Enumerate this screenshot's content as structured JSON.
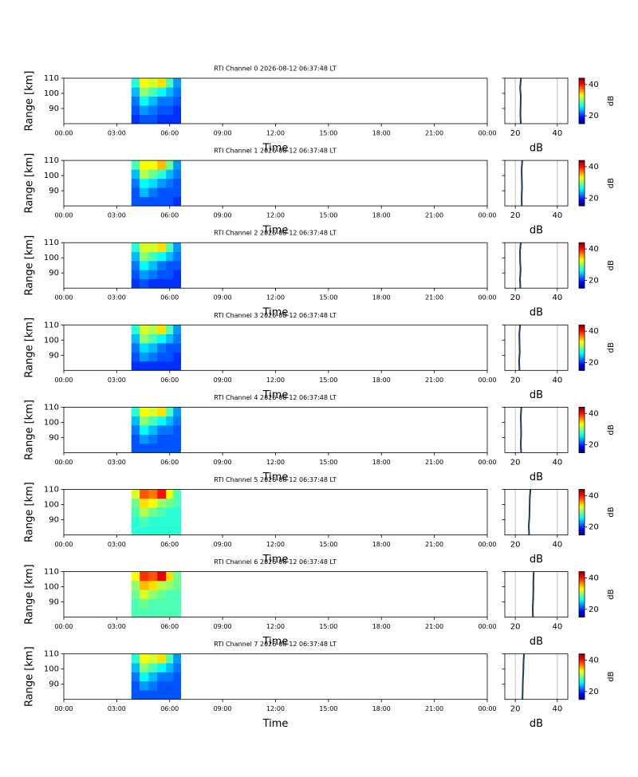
{
  "chart_data": {
    "type": "rti",
    "xlabel": "Time",
    "ylabel": "Range [km]",
    "profile_xlabel": "dB",
    "colorbar_label": "dB",
    "xlim": [
      0,
      24
    ],
    "xticks": [
      {
        "value": 0,
        "label": "00:00"
      },
      {
        "value": 3,
        "label": "03:00"
      },
      {
        "value": 6,
        "label": "06:00"
      },
      {
        "value": 9,
        "label": "09:00"
      },
      {
        "value": 12,
        "label": "12:00"
      },
      {
        "value": 15,
        "label": "15:00"
      },
      {
        "value": 18,
        "label": "18:00"
      },
      {
        "value": 21,
        "label": "21:00"
      },
      {
        "value": 24,
        "label": "00:00"
      }
    ],
    "ylim": [
      80,
      110
    ],
    "yticks": [
      90,
      100,
      110
    ],
    "profile_xlim": [
      15,
      45
    ],
    "profile_xticks": [
      20,
      40
    ],
    "profile_grid": true,
    "profile_color": "#1f3a5f",
    "clim": [
      15,
      44
    ],
    "cticks": [
      20,
      40
    ],
    "time_bins": [
      3.83,
      4.3,
      4.8,
      5.3,
      5.8,
      6.2,
      6.63
    ],
    "range_bins": [
      80,
      86,
      92,
      98,
      104,
      110
    ],
    "channels": [
      {
        "title": "RTI Channel 0 2026-08-12 06:37:48 LT",
        "values": [
          [
            20,
            21,
            21,
            20,
            20,
            20
          ],
          [
            21,
            23,
            22,
            21,
            21,
            20
          ],
          [
            22,
            26,
            24,
            22,
            22,
            21
          ],
          [
            24,
            30,
            28,
            26,
            24,
            22
          ],
          [
            27,
            33,
            32,
            34,
            28,
            23
          ]
        ],
        "profile": [
          22.6,
          22.4,
          22.5,
          22.6,
          22.3,
          22.7
        ]
      },
      {
        "title": "RTI Channel 1 2026-08-12 06:37:48 LT",
        "values": [
          [
            21,
            21,
            21,
            21,
            21,
            20
          ],
          [
            21,
            24,
            22,
            21,
            21,
            21
          ],
          [
            22,
            26,
            25,
            23,
            22,
            21
          ],
          [
            24,
            31,
            29,
            27,
            24,
            22
          ],
          [
            28,
            33,
            33,
            35,
            29,
            23
          ]
        ],
        "profile": [
          23.1,
          23.0,
          23.2,
          23.1,
          23.0,
          23.3
        ]
      },
      {
        "title": "RTI Channel 2 2026-08-12 06:37:48 LT",
        "values": [
          [
            20,
            21,
            20,
            20,
            20,
            20
          ],
          [
            21,
            23,
            22,
            21,
            21,
            20
          ],
          [
            22,
            26,
            24,
            22,
            21,
            21
          ],
          [
            24,
            30,
            28,
            26,
            24,
            22
          ],
          [
            27,
            32,
            32,
            34,
            28,
            23
          ]
        ],
        "profile": [
          22.4,
          22.2,
          22.5,
          22.3,
          22.2,
          22.6
        ]
      },
      {
        "title": "RTI Channel 3 2026-08-12 06:37:48 LT",
        "values": [
          [
            20,
            20,
            20,
            20,
            20,
            20
          ],
          [
            21,
            23,
            22,
            21,
            21,
            20
          ],
          [
            22,
            25,
            24,
            22,
            21,
            21
          ],
          [
            24,
            30,
            28,
            26,
            24,
            22
          ],
          [
            27,
            32,
            31,
            34,
            28,
            23
          ]
        ],
        "profile": [
          22.0,
          21.8,
          22.1,
          22.0,
          21.9,
          22.3
        ]
      },
      {
        "title": "RTI Channel 4 2026-08-12 06:37:48 LT",
        "values": [
          [
            21,
            21,
            21,
            21,
            21,
            21
          ],
          [
            21,
            23,
            22,
            21,
            21,
            21
          ],
          [
            22,
            26,
            24,
            22,
            22,
            21
          ],
          [
            24,
            30,
            28,
            26,
            24,
            22
          ],
          [
            27,
            33,
            32,
            34,
            28,
            23
          ]
        ],
        "profile": [
          22.8,
          22.6,
          22.8,
          22.7,
          22.6,
          22.9
        ]
      },
      {
        "title": "RTI Channel 5 2026-08-12 06:37:48 LT",
        "values": [
          [
            27,
            27,
            27,
            27,
            27,
            27
          ],
          [
            27,
            28,
            27,
            27,
            27,
            27
          ],
          [
            28,
            31,
            29,
            28,
            27,
            27
          ],
          [
            29,
            34,
            33,
            30,
            29,
            28
          ],
          [
            32,
            38,
            37,
            40,
            33,
            28
          ]
        ],
        "profile": [
          26.6,
          26.4,
          26.7,
          26.8,
          26.9,
          27.2
        ]
      },
      {
        "title": "RTI Channel 6 2026-08-12 06:37:48 LT",
        "values": [
          [
            28,
            28,
            28,
            28,
            28,
            28
          ],
          [
            28,
            29,
            28,
            28,
            28,
            28
          ],
          [
            29,
            32,
            30,
            29,
            28,
            28
          ],
          [
            30,
            35,
            34,
            31,
            30,
            29
          ],
          [
            33,
            39,
            38,
            41,
            34,
            29
          ]
        ],
        "profile": [
          28.4,
          28.3,
          28.5,
          28.6,
          28.6,
          28.8
        ]
      },
      {
        "title": "RTI Channel 7 2026-08-12 06:37:48 LT",
        "values": [
          [
            21,
            21,
            21,
            21,
            21,
            21
          ],
          [
            21,
            23,
            22,
            21,
            21,
            21
          ],
          [
            22,
            26,
            24,
            22,
            22,
            21
          ],
          [
            24,
            30,
            28,
            26,
            24,
            22
          ],
          [
            27,
            33,
            32,
            34,
            28,
            23
          ]
        ],
        "profile": [
          23.4,
          23.5,
          23.6,
          23.8,
          23.9,
          24.1
        ]
      }
    ]
  }
}
